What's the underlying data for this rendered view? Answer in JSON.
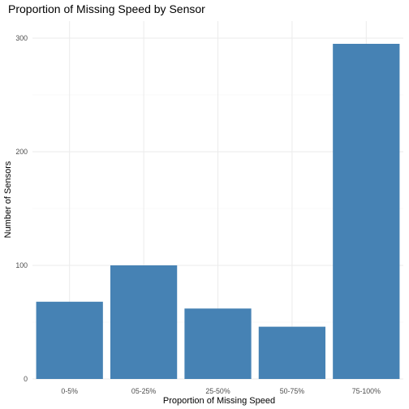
{
  "chart_data": {
    "type": "bar",
    "title": "Proportion of Missing Speed by Sensor",
    "xlabel": "Proportion of Missing Speed",
    "ylabel": "Number of Sensors",
    "categories": [
      "0-5%",
      "05-25%",
      "25-50%",
      "50-75%",
      "75-100%"
    ],
    "values": [
      68,
      100,
      62,
      46,
      295
    ],
    "ylim": [
      0,
      315
    ],
    "yticks": [
      0,
      100,
      200,
      300
    ],
    "grid": true,
    "bar_color": "#4682B4"
  }
}
